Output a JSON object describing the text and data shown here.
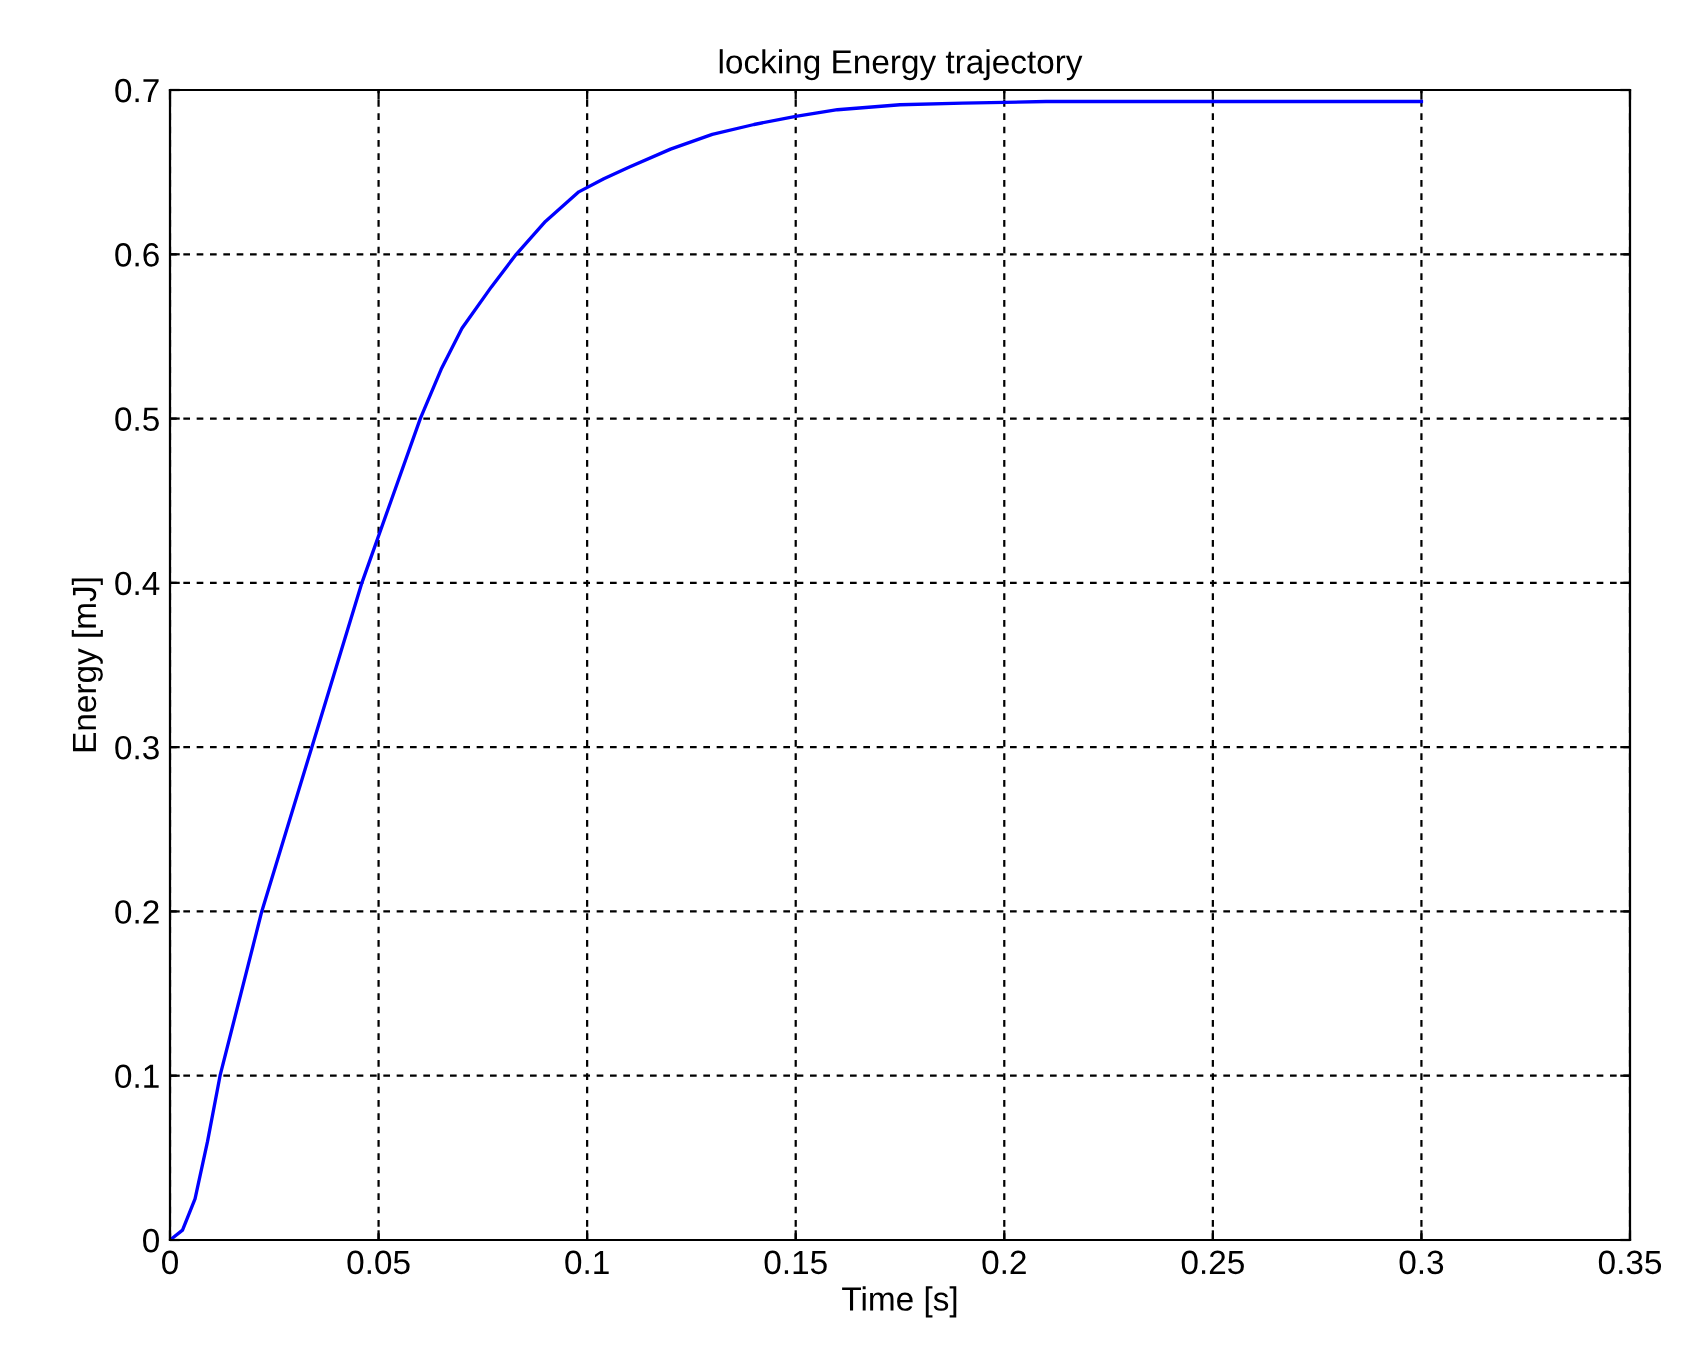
{
  "chart_data": {
    "type": "line",
    "title": "locking Energy trajectory",
    "xlabel": "Time [s]",
    "ylabel": "Energy [mJ]",
    "x": [
      0,
      0.003,
      0.006,
      0.009,
      0.012,
      0.017,
      0.022,
      0.028,
      0.034,
      0.04,
      0.046,
      0.053,
      0.06,
      0.065,
      0.07,
      0.077,
      0.083,
      0.09,
      0.098,
      0.104,
      0.11,
      0.12,
      0.13,
      0.14,
      0.15,
      0.16,
      0.175,
      0.19,
      0.21,
      0.25,
      0.3
    ],
    "series": [
      {
        "color": "#0000ff",
        "values": [
          0,
          0.006,
          0.025,
          0.06,
          0.1,
          0.15,
          0.2,
          0.25,
          0.3,
          0.35,
          0.4,
          0.45,
          0.5,
          0.53,
          0.555,
          0.58,
          0.6,
          0.62,
          0.638,
          0.646,
          0.653,
          0.664,
          0.673,
          0.679,
          0.684,
          0.688,
          0.691,
          0.692,
          0.693,
          0.693,
          0.693
        ]
      }
    ],
    "xlim": [
      0,
      0.35
    ],
    "xticks": [
      0,
      0.05,
      0.1,
      0.15,
      0.2,
      0.25,
      0.3,
      0.35
    ],
    "ylim": [
      0,
      0.7
    ],
    "yticks": [
      0,
      0.1,
      0.2,
      0.3,
      0.4,
      0.5,
      0.6,
      0.7
    ],
    "grid": true,
    "line_style": "solid",
    "marker": "none"
  }
}
